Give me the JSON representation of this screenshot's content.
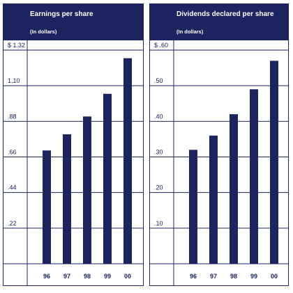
{
  "colors": {
    "navy": "#1c2460",
    "white": "#ffffff"
  },
  "chart_data": [
    {
      "type": "bar",
      "title": "Earnings per share",
      "subtitle": "(In dollars)",
      "categories": [
        "96",
        "97",
        "98",
        "99",
        "00"
      ],
      "values": [
        0.7,
        0.8,
        0.91,
        1.05,
        1.27
      ],
      "ylim": [
        0,
        1.32
      ],
      "yticks": [
        0.22,
        0.44,
        0.66,
        0.88,
        1.1,
        1.32
      ],
      "ytick_labels": [
        ".22",
        ".44",
        ".66",
        ".88",
        "1.10",
        "$ 1.32"
      ],
      "grid": true
    },
    {
      "type": "bar",
      "title": "Dividends declared per share",
      "subtitle": "(In dollars)",
      "categories": [
        "96",
        "97",
        "98",
        "99",
        "00"
      ],
      "values": [
        0.32,
        0.36,
        0.42,
        0.49,
        0.57
      ],
      "ylim": [
        0,
        0.6
      ],
      "yticks": [
        0.1,
        0.2,
        0.3,
        0.4,
        0.5,
        0.6
      ],
      "ytick_labels": [
        ".10",
        ".20",
        ".30",
        ".40",
        ".50",
        "$ .60"
      ],
      "grid": true
    }
  ]
}
